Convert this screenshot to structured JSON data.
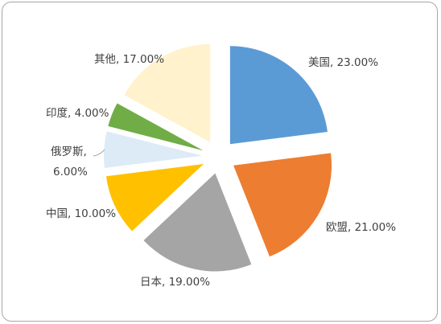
{
  "chart_data": {
    "type": "pie",
    "exploded": true,
    "slices": [
      {
        "label": "美国, 23.00%",
        "value": 23,
        "color": "#5b9bd5"
      },
      {
        "label": "欧盟, 21.00%",
        "value": 21,
        "color": "#ed7d31"
      },
      {
        "label": "日本, 19.00%",
        "value": 19,
        "color": "#a5a5a5"
      },
      {
        "label": "中国, 10.00%",
        "value": 10,
        "color": "#ffc000"
      },
      {
        "label_lines": [
          "俄罗斯,",
          "6.00%"
        ],
        "value": 6,
        "color": "#ddebf7"
      },
      {
        "label": "印度, 4.00%",
        "value": 4,
        "color": "#70ad47"
      },
      {
        "label": "其他, 17.00%",
        "value": 17,
        "color": "#fff2cc"
      }
    ]
  }
}
